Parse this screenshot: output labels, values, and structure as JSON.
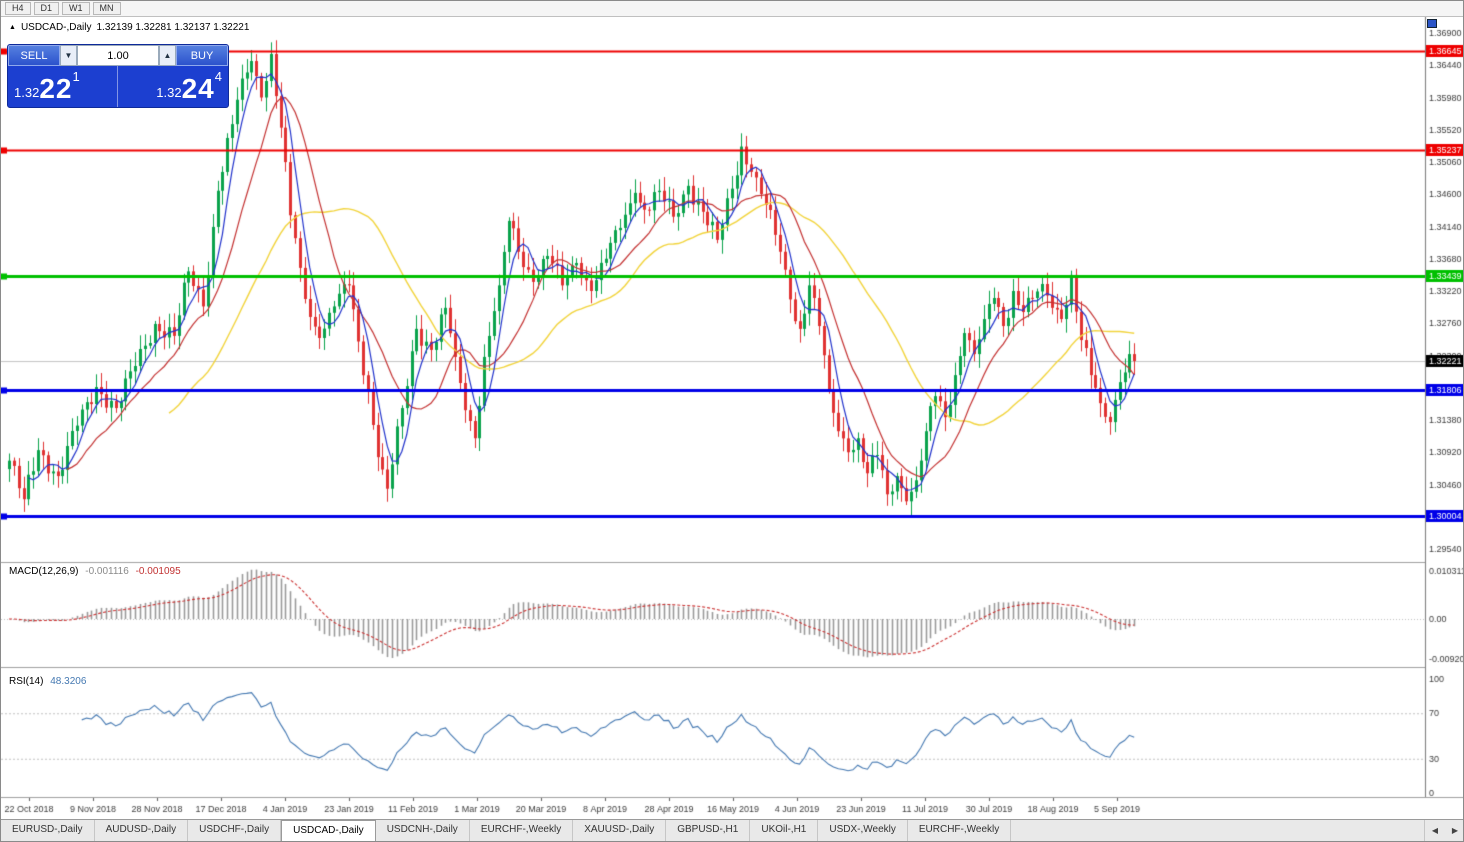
{
  "toolbar": {
    "timeframes": [
      "H4",
      "D1",
      "W1",
      "MN"
    ]
  },
  "chart_header": {
    "icon": "▲",
    "symbol": "USDCAD-,Daily",
    "ohlc": "1.32139 1.32281 1.32137 1.32221"
  },
  "trade_panel": {
    "sell_label": "SELL",
    "buy_label": "BUY",
    "volume": "1.00",
    "spin_down": "▼",
    "spin_up": "▲",
    "sell_price": {
      "prefix": "1.32",
      "big": "22",
      "sup": "1"
    },
    "buy_price": {
      "prefix": "1.32",
      "big": "24",
      "sup": "4"
    }
  },
  "chart_data": {
    "type": "candlestick",
    "symbol": "USDCAD-,Daily",
    "timeframe": "Daily",
    "quote": {
      "open": 1.32139,
      "high": 1.32281,
      "low": 1.32137,
      "close": 1.32221
    },
    "candle_count": 233,
    "up_color": "#0aa34c",
    "down_color": "#e03232",
    "y_ticks": [
      "1.36900",
      "1.36440",
      "1.35980",
      "1.35520",
      "1.35060",
      "1.34600",
      "1.34140",
      "1.33680",
      "1.33220",
      "1.32760",
      "1.32300",
      "1.31840",
      "1.31380",
      "1.30920",
      "1.30460",
      "1.30000",
      "1.29540"
    ],
    "x_tick_labels": [
      "22 Oct 2018",
      "9 Nov 2018",
      "28 Nov 2018",
      "17 Dec 2018",
      "4 Jan 2019",
      "23 Jan 2019",
      "11 Feb 2019",
      "1 Mar 2019",
      "20 Mar 2019",
      "8 Apr 2019",
      "28 Apr 2019",
      "16 May 2019",
      "4 Jun 2019",
      "23 Jun 2019",
      "11 Jul 2019",
      "30 Jul 2019",
      "18 Aug 2019",
      "5 Sep 2019"
    ],
    "close_anchors": [
      [
        0,
        1.308
      ],
      [
        3,
        1.3025
      ],
      [
        6,
        1.3095
      ],
      [
        10,
        1.3058
      ],
      [
        14,
        1.313
      ],
      [
        18,
        1.3185
      ],
      [
        22,
        1.3155
      ],
      [
        26,
        1.3215
      ],
      [
        30,
        1.3275
      ],
      [
        34,
        1.3258
      ],
      [
        37,
        1.335
      ],
      [
        40,
        1.33
      ],
      [
        43,
        1.3465
      ],
      [
        46,
        1.356
      ],
      [
        48,
        1.3625
      ],
      [
        50,
        1.365
      ],
      [
        52,
        1.3598
      ],
      [
        54,
        1.366
      ],
      [
        56,
        1.3555
      ],
      [
        58,
        1.343
      ],
      [
        60,
        1.3355
      ],
      [
        62,
        1.3285
      ],
      [
        64,
        1.3255
      ],
      [
        67,
        1.33
      ],
      [
        70,
        1.333
      ],
      [
        72,
        1.325
      ],
      [
        74,
        1.318
      ],
      [
        76,
        1.3085
      ],
      [
        78,
        1.304
      ],
      [
        81,
        1.3155
      ],
      [
        84,
        1.3268
      ],
      [
        87,
        1.3238
      ],
      [
        90,
        1.3298
      ],
      [
        92,
        1.3228
      ],
      [
        94,
        1.3152
      ],
      [
        96,
        1.3112
      ],
      [
        98,
        1.3228
      ],
      [
        101,
        1.333
      ],
      [
        103,
        1.3422
      ],
      [
        105,
        1.3378
      ],
      [
        108,
        1.3335
      ],
      [
        111,
        1.3372
      ],
      [
        114,
        1.333
      ],
      [
        117,
        1.3362
      ],
      [
        120,
        1.3322
      ],
      [
        123,
        1.3368
      ],
      [
        126,
        1.3412
      ],
      [
        129,
        1.3462
      ],
      [
        131,
        1.3438
      ],
      [
        134,
        1.3465
      ],
      [
        137,
        1.3428
      ],
      [
        140,
        1.3472
      ],
      [
        143,
        1.3435
      ],
      [
        146,
        1.3395
      ],
      [
        149,
        1.3468
      ],
      [
        151,
        1.3528
      ],
      [
        153,
        1.3492
      ],
      [
        156,
        1.3445
      ],
      [
        159,
        1.3378
      ],
      [
        161,
        1.331
      ],
      [
        163,
        1.3268
      ],
      [
        165,
        1.333
      ],
      [
        167,
        1.3272
      ],
      [
        169,
        1.3182
      ],
      [
        171,
        1.3122
      ],
      [
        173,
        1.3092
      ],
      [
        175,
        1.3112
      ],
      [
        177,
        1.3062
      ],
      [
        179,
        1.3088
      ],
      [
        181,
        1.3032
      ],
      [
        183,
        1.3058
      ],
      [
        185,
        1.3022
      ],
      [
        187,
        1.3052
      ],
      [
        189,
        1.3122
      ],
      [
        191,
        1.3172
      ],
      [
        193,
        1.3142
      ],
      [
        195,
        1.3202
      ],
      [
        197,
        1.3262
      ],
      [
        199,
        1.3232
      ],
      [
        201,
        1.3282
      ],
      [
        203,
        1.3312
      ],
      [
        205,
        1.3272
      ],
      [
        207,
        1.3322
      ],
      [
        209,
        1.3292
      ],
      [
        211,
        1.3312
      ],
      [
        213,
        1.3332
      ],
      [
        215,
        1.3298
      ],
      [
        217,
        1.3282
      ],
      [
        219,
        1.3345
      ],
      [
        221,
        1.3252
      ],
      [
        223,
        1.3202
      ],
      [
        225,
        1.3162
      ],
      [
        227,
        1.3135
      ],
      [
        229,
        1.3192
      ],
      [
        231,
        1.3232
      ],
      [
        232,
        1.32221
      ]
    ],
    "moving_averages": [
      {
        "period": 34,
        "color": "#f2d43c",
        "width": 1.4
      },
      {
        "period": 13,
        "color": "#c43232",
        "width": 1.2
      },
      {
        "period": 5,
        "color": "#2233cc",
        "width": 1.2
      }
    ],
    "horizontal_lines": [
      {
        "value": 1.36645,
        "label": "1.36645",
        "color": "#ee0000",
        "width": 2
      },
      {
        "value": 1.35237,
        "label": "1.35237",
        "color": "#ee0000",
        "width": 2
      },
      {
        "value": 1.33439,
        "label": "1.33439",
        "color": "#00c000",
        "width": 3
      },
      {
        "value": 1.31806,
        "label": "1.31806",
        "color": "#0000e8",
        "width": 3
      },
      {
        "value": 1.30004,
        "label": "1.30004",
        "color": "#0000e8",
        "width": 3
      }
    ],
    "current_price": {
      "value": 1.32221,
      "label": "1.32221",
      "box_color": "#000000"
    },
    "indicators": {
      "macd": {
        "label": "MACD(12,26,9)",
        "main_value": "-0.001116",
        "signal_value": "-0.001095",
        "scale_top": "0.010311",
        "scale_zero": "0.00",
        "scale_bottom": "-0.009203",
        "histogram_color": "#9a9a9a",
        "signal_color": "#cc3333"
      },
      "rsi": {
        "label": "RSI(14)",
        "value": "48.3206",
        "scale": [
          "100",
          "70",
          "30",
          "0"
        ],
        "levels": [
          70,
          30
        ],
        "line_color": "#4579b2"
      }
    }
  },
  "tab_bar": {
    "nav_left": "◀",
    "nav_right": "▶",
    "tabs": [
      {
        "label": "EURUSD-,Daily",
        "active": false
      },
      {
        "label": "AUDUSD-,Daily",
        "active": false
      },
      {
        "label": "USDCHF-,Daily",
        "active": false
      },
      {
        "label": "USDCAD-,Daily",
        "active": true
      },
      {
        "label": "USDCNH-,Daily",
        "active": false
      },
      {
        "label": "EURCHF-,Weekly",
        "active": false
      },
      {
        "label": "XAUUSD-,Daily",
        "active": false
      },
      {
        "label": "GBPUSD-,H1",
        "active": false
      },
      {
        "label": "UKOil-,H1",
        "active": false
      },
      {
        "label": "USDX-,Weekly",
        "active": false
      },
      {
        "label": "EURCHF-,Weekly",
        "active": false
      }
    ]
  }
}
